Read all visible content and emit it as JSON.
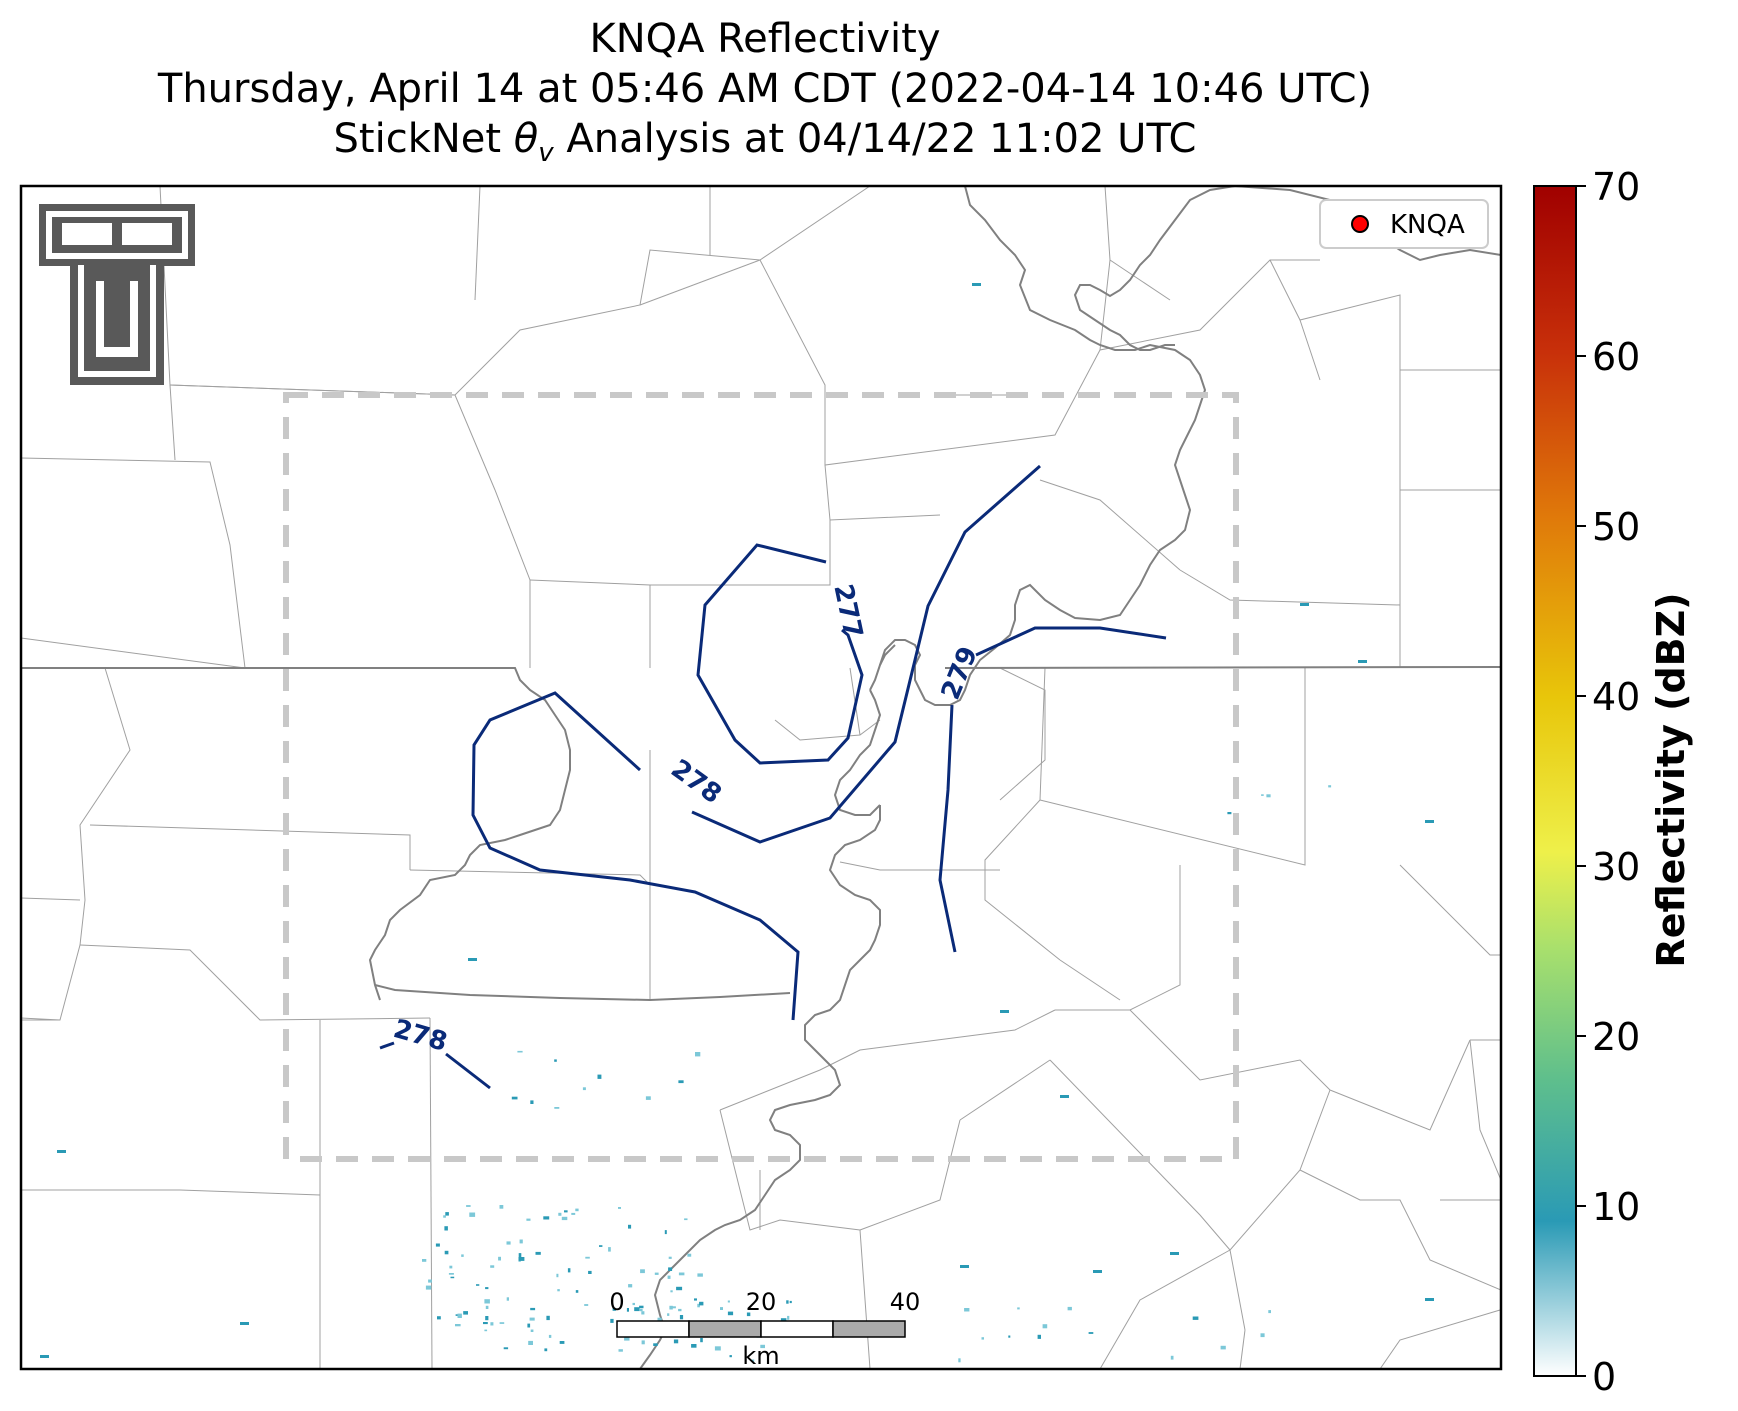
{
  "title": {
    "line1": "KNQA Reflectivity",
    "line2": "Thursday, April 14 at 05:46 AM CDT (2022-04-14 10:46 UTC)",
    "line3_prefix": "StickNet ",
    "line3_symbol": "θ",
    "line3_subscript": "v",
    "line3_suffix": " Analysis at 04/14/22 11:02 UTC"
  },
  "legend": {
    "marker_color": "#ff0000",
    "label": "KNQA"
  },
  "colorbar": {
    "label": "Reflectivity (dBZ)",
    "ticks": [
      "0",
      "10",
      "20",
      "30",
      "40",
      "50",
      "60",
      "70"
    ],
    "range": [
      0,
      70
    ],
    "colors": [
      "#ffffff",
      "#2a9ab5",
      "#5fbf8c",
      "#a9e06c",
      "#eef04a",
      "#e8c60a",
      "#e07a0a",
      "#c8300a",
      "#a00000"
    ]
  },
  "contours": {
    "color": "#0a2a78",
    "labels": [
      "277",
      "278",
      "279",
      "278"
    ]
  },
  "scale_bar": {
    "ticks": [
      "0",
      "20",
      "40"
    ],
    "unit": "km"
  },
  "colors": {
    "boundary": "#808080",
    "county": "#a0a0a0",
    "domain_box": "#c8c8c8",
    "echo": "#2a9ab5"
  }
}
